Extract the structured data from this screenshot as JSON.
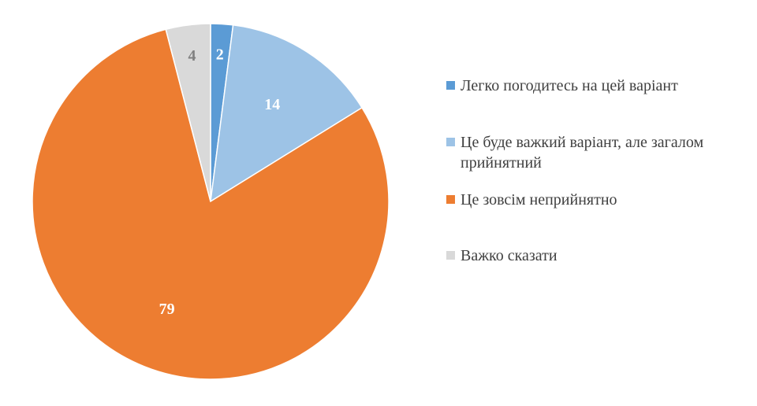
{
  "chart_data": {
    "type": "pie",
    "title": "",
    "categories": [
      "Легко погодитесь на цей варіант",
      "Це буде важкий варіант, але загалом прийнятний",
      "Це зовсім неприйнятно",
      "Важко сказати"
    ],
    "values": [
      2,
      14,
      79,
      4
    ],
    "data_labels": [
      "2",
      "14",
      "79",
      "4"
    ],
    "colors": [
      "#5B9BD5",
      "#9DC3E6",
      "#ED7D31",
      "#D9D9D9"
    ],
    "label_colors": [
      "#FFFFFF",
      "#FFFFFF",
      "#FFFFFF",
      "#808080"
    ],
    "legend_position": "right",
    "start_angle": "12 o'clock",
    "direction": "clockwise"
  },
  "legend": {
    "items": [
      {
        "label": "Легко погодитесь на цей варіант",
        "color": "#5B9BD5"
      },
      {
        "label": "Це буде важкий варіант, але загалом прийнятний",
        "color": "#9DC3E6"
      },
      {
        "label": "Це зовсім неприйнятно",
        "color": "#ED7D31"
      },
      {
        "label": "Важко сказати",
        "color": "#D9D9D9"
      }
    ]
  }
}
